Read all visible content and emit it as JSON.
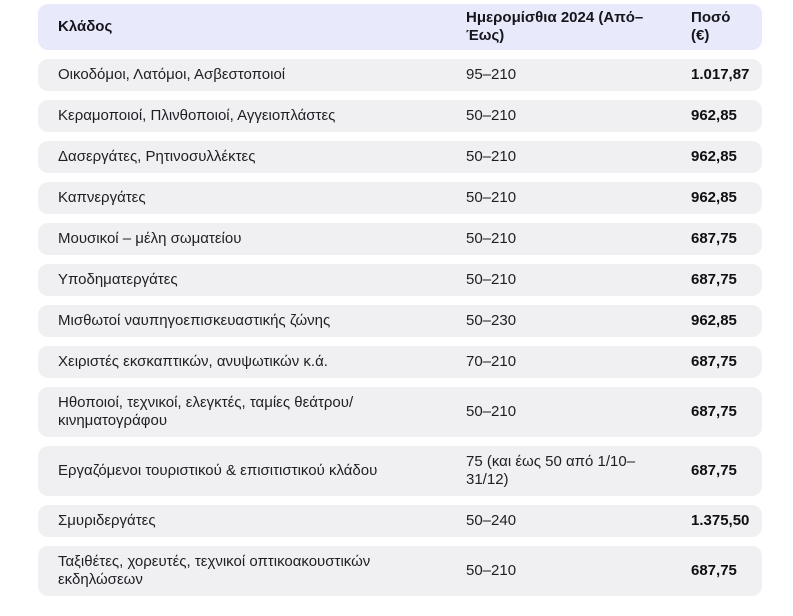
{
  "colors": {
    "header_bg": "#e8eafb",
    "row_bg": "#f0f0f2"
  },
  "chart_data": {
    "type": "table",
    "columns": [
      "Κλάδος",
      "Ημερομίσθια 2024 (Από–Έως)",
      "Ποσό (€)"
    ],
    "rows": [
      [
        "Οικοδόμοι, Λατόμοι, Ασβεστοποιοί",
        "95–210",
        "1.017,87"
      ],
      [
        "Κεραμοποιοί, Πλινθοποιοί, Αγγειοπλάστες",
        "50–210",
        "962,85"
      ],
      [
        "Δασεργάτες, Ρητινοσυλλέκτες",
        "50–210",
        "962,85"
      ],
      [
        "Καπνεργάτες",
        "50–210",
        "962,85"
      ],
      [
        "Μουσικοί – μέλη σωματείου",
        "50–210",
        "687,75"
      ],
      [
        "Υποδηματεργάτες",
        "50–210",
        "687,75"
      ],
      [
        "Μισθωτοί ναυπηγοεπισκευαστικής ζώνης",
        "50–230",
        "962,85"
      ],
      [
        "Χειριστές εκσκαπτικών, ανυψωτικών κ.ά.",
        "70–210",
        "687,75"
      ],
      [
        "Ηθοποιοί, τεχνικοί, ελεγκτές, ταμίες θεάτρου/​κινηματογράφου",
        "50–210",
        "687,75"
      ],
      [
        "Εργαζόμενοι τουριστικού & επισιτιστικού κλάδου",
        "75 (και έως 50 από 1/10–31/12)",
        "687,75"
      ],
      [
        "Σμυριδεργάτες",
        "50–240",
        "1.375,50"
      ],
      [
        "Ταξιθέτες, χορευτές, τεχνικοί οπτικοακουστικών εκδηλώσεων",
        "50–210",
        "687,75"
      ]
    ]
  }
}
